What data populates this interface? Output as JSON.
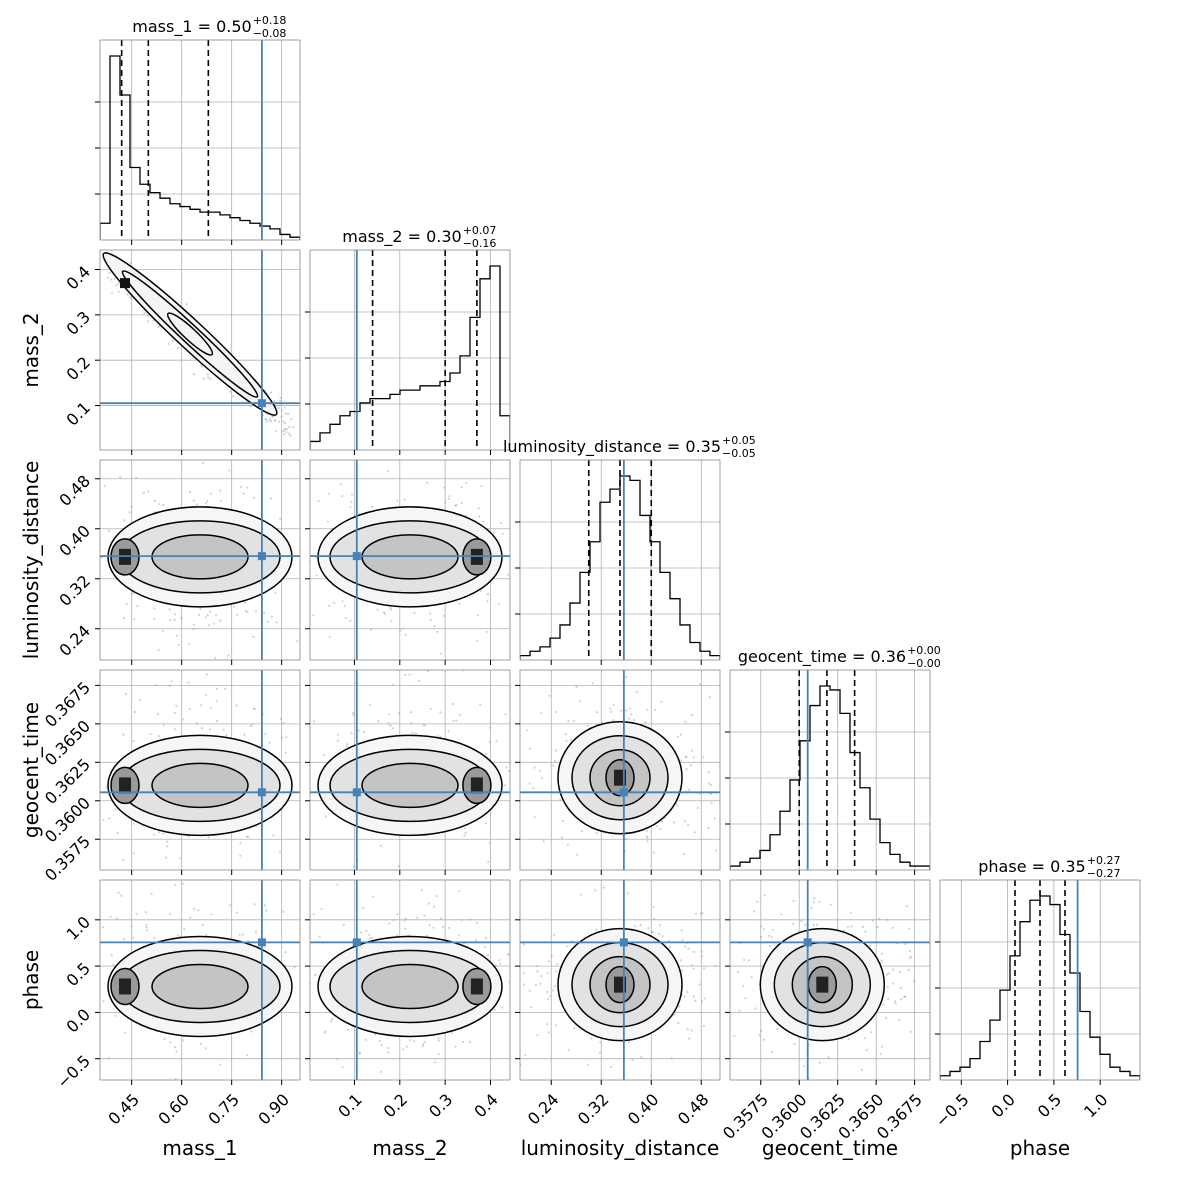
{
  "colors": {
    "truth": "#4682b4",
    "hist": "#000000",
    "grid": "#b0b0b0",
    "scatter": "#9a9a9a"
  },
  "chart_data": {
    "type": "corner",
    "parameters": [
      "mass_1",
      "mass_2",
      "luminosity_distance",
      "geocent_time",
      "phase"
    ],
    "truths": {
      "mass_1": 0.8407,
      "mass_2": 0.1052,
      "luminosity_distance": 0.3562,
      "geocent_time": 0.36055,
      "phase": 0.7562
    },
    "titles": [
      {
        "param": "mass_1",
        "prefix": "mass_1 = ",
        "median": "0.50",
        "plus": "+0.18",
        "minus": "−0.08"
      },
      {
        "param": "mass_2",
        "prefix": "mass_2 = ",
        "median": "0.30",
        "plus": "+0.07",
        "minus": "−0.16"
      },
      {
        "param": "luminosity_distance",
        "prefix": "luminosity_distance = ",
        "median": "0.35",
        "plus": "+0.05",
        "minus": "−0.05"
      },
      {
        "param": "geocent_time",
        "prefix": "geocent_time = ",
        "median": "0.36",
        "plus": "+0.00",
        "minus": "−0.00"
      },
      {
        "param": "phase",
        "prefix": "phase = ",
        "median": "0.35",
        "plus": "+0.27",
        "minus": "−0.27"
      }
    ],
    "axes": {
      "mass_1": {
        "range": [
          0.355,
          0.955
        ],
        "ticks": [
          0.45,
          0.6,
          0.75,
          0.9
        ],
        "tick_labels": [
          "0.45",
          "0.60",
          "0.75",
          "0.90"
        ],
        "label": "mass_1"
      },
      "mass_2": {
        "range": [
          0.002,
          0.443
        ],
        "ticks": [
          0.1,
          0.2,
          0.3,
          0.4
        ],
        "tick_labels": [
          "0.1",
          "0.2",
          "0.3",
          "0.4"
        ],
        "label": "mass_2"
      },
      "luminosity_distance": {
        "range": [
          0.19,
          0.51
        ],
        "ticks": [
          0.24,
          0.32,
          0.4,
          0.48
        ],
        "tick_labels": [
          "0.24",
          "0.32",
          "0.40",
          "0.48"
        ],
        "label": "luminosity_distance"
      },
      "geocent_time": {
        "range": [
          0.3555,
          0.3685
        ],
        "ticks": [
          0.3575,
          0.36,
          0.3625,
          0.365,
          0.3675
        ],
        "tick_labels": [
          "0.3575",
          "0.3600",
          "0.3625",
          "0.3650",
          "0.3675"
        ],
        "label": "geocent_time"
      },
      "phase": {
        "range": [
          -0.73,
          1.43
        ],
        "ticks": [
          -0.5,
          0.0,
          0.5,
          1.0
        ],
        "tick_labels": [
          "−0.5",
          "0.0",
          "0.5",
          "1.0"
        ],
        "label": "phase"
      }
    },
    "quantiles": {
      "mass_1": [
        0.42,
        0.5,
        0.68
      ],
      "mass_2": [
        0.14,
        0.3,
        0.37
      ],
      "luminosity_distance": [
        0.3,
        0.35,
        0.4
      ],
      "geocent_time": [
        0.36,
        0.3618,
        0.3636
      ],
      "phase": [
        0.08,
        0.35,
        0.62
      ]
    },
    "histograms": {
      "mass_1": [
        6,
        66,
        52,
        26,
        20,
        17,
        15,
        13,
        12,
        11,
        10,
        10,
        9,
        8,
        7,
        6,
        5,
        4,
        2,
        1
      ],
      "mass_2": [
        2,
        4,
        6,
        8,
        9,
        11,
        12,
        12,
        13,
        14,
        14,
        15,
        15,
        16,
        18,
        22,
        31,
        40,
        43,
        8
      ],
      "luminosity_distance": [
        1,
        2,
        3,
        5,
        8,
        13,
        20,
        27,
        36,
        39,
        42,
        41,
        33,
        27,
        20,
        14,
        8,
        4,
        2,
        1
      ],
      "geocent_time": [
        1,
        2,
        3,
        5,
        9,
        15,
        23,
        33,
        42,
        47,
        46,
        40,
        30,
        21,
        13,
        7,
        4,
        2,
        1,
        1
      ],
      "phase": [
        1,
        2,
        3,
        5,
        9,
        14,
        21,
        29,
        37,
        42,
        43,
        41,
        34,
        25,
        16,
        10,
        6,
        3,
        2,
        1
      ]
    },
    "modes": {
      "mass_1|mass_2": {
        "peaks": [
          [
            0.43,
            0.37
          ]
        ],
        "orientation": "anti-correlated"
      },
      "mass_1|luminosity_distance": {
        "peaks": [
          [
            0.43,
            0.355
          ]
        ]
      },
      "mass_1|geocent_time": {
        "peaks": [
          [
            0.43,
            0.361
          ]
        ]
      },
      "mass_1|phase": {
        "peaks": [
          [
            0.43,
            0.28
          ]
        ]
      },
      "mass_2|luminosity_distance": {
        "peaks": [
          [
            0.37,
            0.355
          ]
        ]
      },
      "mass_2|geocent_time": {
        "peaks": [
          [
            0.37,
            0.361
          ]
        ]
      },
      "mass_2|phase": {
        "peaks": [
          [
            0.37,
            0.28
          ]
        ]
      },
      "luminosity_distance|geocent_time": {
        "peaks": [
          [
            0.35,
            0.3615
          ]
        ]
      },
      "luminosity_distance|phase": {
        "peaks": [
          [
            0.35,
            0.3
          ]
        ]
      },
      "geocent_time|phase": {
        "peaks": [
          [
            0.3615,
            0.3
          ]
        ]
      }
    },
    "grid": true
  }
}
